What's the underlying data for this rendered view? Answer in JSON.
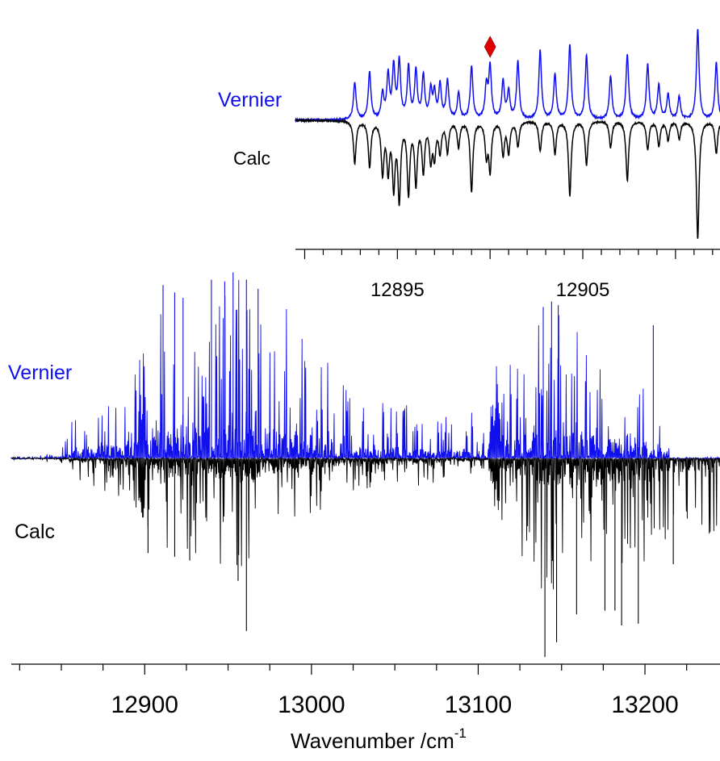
{
  "chart_data": [
    {
      "type": "line",
      "panel": "inset",
      "title": "",
      "xlabel": "",
      "ylabel": "",
      "xlim": [
        12889.5,
        12912.4
      ],
      "x_ticks": [
        12895,
        12905
      ],
      "x_tick_labels": [
        "12895",
        "12905"
      ],
      "grid": false,
      "marker": {
        "symbol": "diamond",
        "color": "#e00000",
        "x": 12900.0
      },
      "series": [
        {
          "name": "Vernier",
          "color": "#1010ee",
          "direction": "up",
          "peaks": [
            [
              12892.7,
              0.62
            ],
            [
              12893.5,
              0.79
            ],
            [
              12894.2,
              0.42
            ],
            [
              12894.5,
              0.72
            ],
            [
              12894.8,
              0.86
            ],
            [
              12895.1,
              0.95
            ],
            [
              12895.6,
              0.86
            ],
            [
              12896.0,
              0.8
            ],
            [
              12896.4,
              0.72
            ],
            [
              12896.8,
              0.47
            ],
            [
              12897.0,
              0.42
            ],
            [
              12897.3,
              0.57
            ],
            [
              12897.7,
              0.64
            ],
            [
              12898.3,
              0.43
            ],
            [
              12899.0,
              0.88
            ],
            [
              12899.8,
              0.55
            ],
            [
              12900.0,
              0.86
            ],
            [
              12900.7,
              0.63
            ],
            [
              12901.0,
              0.45
            ],
            [
              12901.5,
              0.96
            ],
            [
              12902.7,
              1.15
            ],
            [
              12903.5,
              0.75
            ],
            [
              12904.3,
              1.25
            ],
            [
              12905.2,
              1.07
            ],
            [
              12906.5,
              0.73
            ],
            [
              12907.4,
              1.09
            ],
            [
              12908.5,
              0.92
            ],
            [
              12909.1,
              0.57
            ],
            [
              12909.6,
              0.42
            ],
            [
              12910.2,
              0.38
            ],
            [
              12911.2,
              1.52
            ],
            [
              12912.2,
              0.95
            ]
          ]
        },
        {
          "name": "Calc",
          "color": "#000000",
          "direction": "down",
          "peaks": [
            [
              12892.7,
              0.7
            ],
            [
              12893.5,
              0.76
            ],
            [
              12894.2,
              0.86
            ],
            [
              12894.5,
              0.8
            ],
            [
              12894.8,
              1.05
            ],
            [
              12895.1,
              1.28
            ],
            [
              12895.6,
              1.18
            ],
            [
              12896.0,
              1.02
            ],
            [
              12896.4,
              0.82
            ],
            [
              12896.8,
              0.62
            ],
            [
              12897.0,
              0.56
            ],
            [
              12897.3,
              0.5
            ],
            [
              12897.7,
              0.5
            ],
            [
              12898.3,
              0.42
            ],
            [
              12899.0,
              1.18
            ],
            [
              12899.8,
              0.55
            ],
            [
              12900.0,
              0.8
            ],
            [
              12900.7,
              0.56
            ],
            [
              12901.0,
              0.52
            ],
            [
              12901.5,
              0.42
            ],
            [
              12902.7,
              0.5
            ],
            [
              12903.5,
              0.55
            ],
            [
              12904.3,
              1.25
            ],
            [
              12905.2,
              0.74
            ],
            [
              12906.5,
              0.44
            ],
            [
              12907.4,
              1.0
            ],
            [
              12908.5,
              0.48
            ],
            [
              12909.1,
              0.42
            ],
            [
              12909.6,
              0.32
            ],
            [
              12910.2,
              0.3
            ],
            [
              12911.2,
              1.98
            ],
            [
              12912.2,
              0.55
            ]
          ]
        }
      ]
    },
    {
      "type": "line",
      "panel": "main",
      "title": "",
      "xlabel": "Wavenumber /cm",
      "xlabel_superscript": "-1",
      "ylabel": "",
      "xlim": [
        12820,
        13245
      ],
      "x_ticks": [
        12900,
        13000,
        13100,
        13200
      ],
      "x_tick_labels": [
        "12900",
        "13000",
        "13100",
        "13200"
      ],
      "x_minor_tick_step": 25,
      "grid": false,
      "series": [
        {
          "name": "Vernier",
          "color": "#1010ee",
          "direction": "up",
          "envelope": [
            [
              12836,
              0.015
            ],
            [
              12850,
              0.07
            ],
            [
              12856,
              0.22
            ],
            [
              12870,
              0.34
            ],
            [
              12880,
              0.42
            ],
            [
              12888,
              0.4
            ],
            [
              12893,
              0.45
            ],
            [
              12895,
              0.55
            ],
            [
              12900,
              0.62
            ],
            [
              12910,
              0.85
            ],
            [
              12918,
              0.93
            ],
            [
              12925,
              0.95
            ],
            [
              12935,
              0.86
            ],
            [
              12948,
              0.98
            ],
            [
              12960,
              1.0
            ],
            [
              12968,
              0.88
            ],
            [
              12975,
              0.88
            ],
            [
              12985,
              0.86
            ],
            [
              12995,
              0.72
            ],
            [
              13005,
              0.66
            ],
            [
              13015,
              0.5
            ],
            [
              13025,
              0.34
            ],
            [
              13035,
              0.32
            ],
            [
              13045,
              0.34
            ],
            [
              13055,
              0.32
            ],
            [
              13065,
              0.28
            ],
            [
              13072,
              0.22
            ],
            [
              13080,
              0.26
            ],
            [
              13090,
              0.3
            ],
            [
              13097,
              0.26
            ],
            [
              13102,
              0.2
            ],
            [
              13106,
              0.1
            ],
            [
              13108,
              0.4
            ],
            [
              13112,
              0.58
            ],
            [
              13120,
              0.68
            ],
            [
              13130,
              0.72
            ],
            [
              13140,
              0.86
            ],
            [
              13148,
              0.86
            ],
            [
              13156,
              0.8
            ],
            [
              13166,
              0.73
            ],
            [
              13176,
              0.64
            ],
            [
              13186,
              0.58
            ],
            [
              13196,
              0.52
            ],
            [
              13206,
              0.44
            ],
            [
              13213,
              0.38
            ],
            [
              13215,
              0.0
            ]
          ],
          "tallest_lines": [
            [
              12911,
              0.95
            ],
            [
              12918,
              0.91
            ],
            [
              12923,
              0.88
            ],
            [
              12940,
              0.98
            ],
            [
              12948,
              0.97
            ],
            [
              12953,
              1.02
            ],
            [
              12961,
              0.98
            ],
            [
              12968,
              0.93
            ],
            [
              13139,
              0.83
            ],
            [
              13144,
              0.86
            ],
            [
              13148,
              0.84
            ],
            [
              13205,
              0.73
            ]
          ],
          "dense_bands": [
            [
              12896,
              12900
            ],
            [
              13107,
              13113
            ]
          ]
        },
        {
          "name": "Calc",
          "color": "#000000",
          "direction": "down",
          "envelope": [
            [
              12836,
              0.01
            ],
            [
              12850,
              0.035
            ],
            [
              12860,
              0.12
            ],
            [
              12880,
              0.2
            ],
            [
              12895,
              0.28
            ],
            [
              12900,
              0.36
            ],
            [
              12910,
              0.46
            ],
            [
              12920,
              0.55
            ],
            [
              12935,
              0.52
            ],
            [
              12950,
              0.62
            ],
            [
              12958,
              0.7
            ],
            [
              12970,
              0.52
            ],
            [
              12985,
              0.34
            ],
            [
              12995,
              0.32
            ],
            [
              13010,
              0.26
            ],
            [
              13030,
              0.22
            ],
            [
              13050,
              0.18
            ],
            [
              13070,
              0.14
            ],
            [
              13085,
              0.12
            ],
            [
              13100,
              0.08
            ],
            [
              13106,
              0.06
            ],
            [
              13110,
              0.3
            ],
            [
              13120,
              0.4
            ],
            [
              13135,
              0.72
            ],
            [
              13145,
              0.86
            ],
            [
              13150,
              0.78
            ],
            [
              13160,
              0.72
            ],
            [
              13175,
              0.62
            ],
            [
              13185,
              0.7
            ],
            [
              13195,
              0.66
            ],
            [
              13205,
              0.56
            ],
            [
              13220,
              0.48
            ],
            [
              13245,
              0.4
            ]
          ],
          "tallest_lines": [
            [
              12902,
              0.51
            ],
            [
              12918,
              0.53
            ],
            [
              12927,
              0.55
            ],
            [
              12956,
              0.66
            ],
            [
              12961,
              0.93
            ],
            [
              13140,
              1.07
            ],
            [
              13147,
              0.99
            ],
            [
              13159,
              0.84
            ],
            [
              13176,
              0.82
            ],
            [
              13182,
              0.82
            ],
            [
              13186,
              0.9
            ],
            [
              13196,
              0.89
            ],
            [
              13217,
              0.57
            ]
          ],
          "dense_bands": [
            [
              12896,
              12900
            ],
            [
              13106,
              13112
            ]
          ]
        }
      ]
    }
  ],
  "labels": {
    "inset_vernier": "Vernier",
    "inset_calc": "Calc",
    "main_vernier": "Vernier",
    "main_calc": "Calc"
  },
  "colors": {
    "vernier": "#1010ee",
    "calc": "#000000",
    "marker": "#e00000",
    "axis": "#000000"
  }
}
